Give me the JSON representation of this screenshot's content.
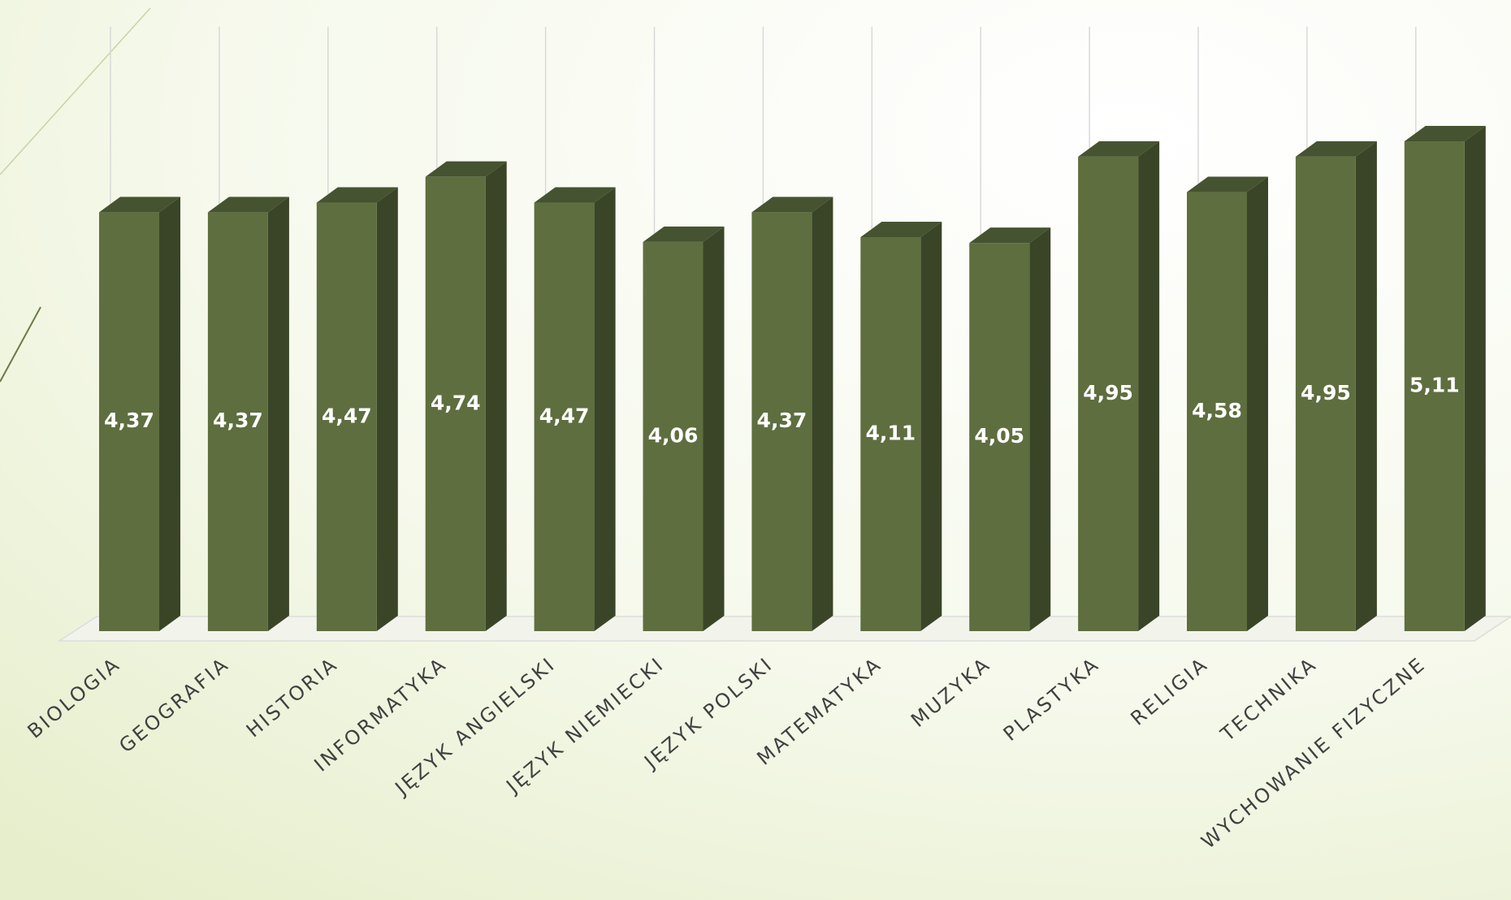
{
  "chart_data": {
    "type": "bar3d",
    "categories": [
      "BIOLOGIA",
      "GEOGRAFIA",
      "HISTORIA",
      "INFORMATYKA",
      "JĘZYK ANGIELSKI",
      "JĘZYK NIEMIECKI",
      "JĘZYK POLSKI",
      "MATEMATYKA",
      "MUZYKA",
      "PLASTYKA",
      "RELIGIA",
      "TECHNIKA",
      "WYCHOWANIE FIZYCZNE"
    ],
    "values": [
      4.37,
      4.37,
      4.47,
      4.74,
      4.47,
      4.06,
      4.37,
      4.11,
      4.05,
      4.95,
      4.58,
      4.95,
      5.11
    ],
    "value_labels": [
      "4,37",
      "4,37",
      "4,47",
      "4,74",
      "4,47",
      "4,06",
      "4,37",
      "4,11",
      "4,05",
      "4,95",
      "4,58",
      "4,95",
      "5,11"
    ],
    "color": "#5e6e3f",
    "ylim": [
      0,
      6
    ]
  }
}
